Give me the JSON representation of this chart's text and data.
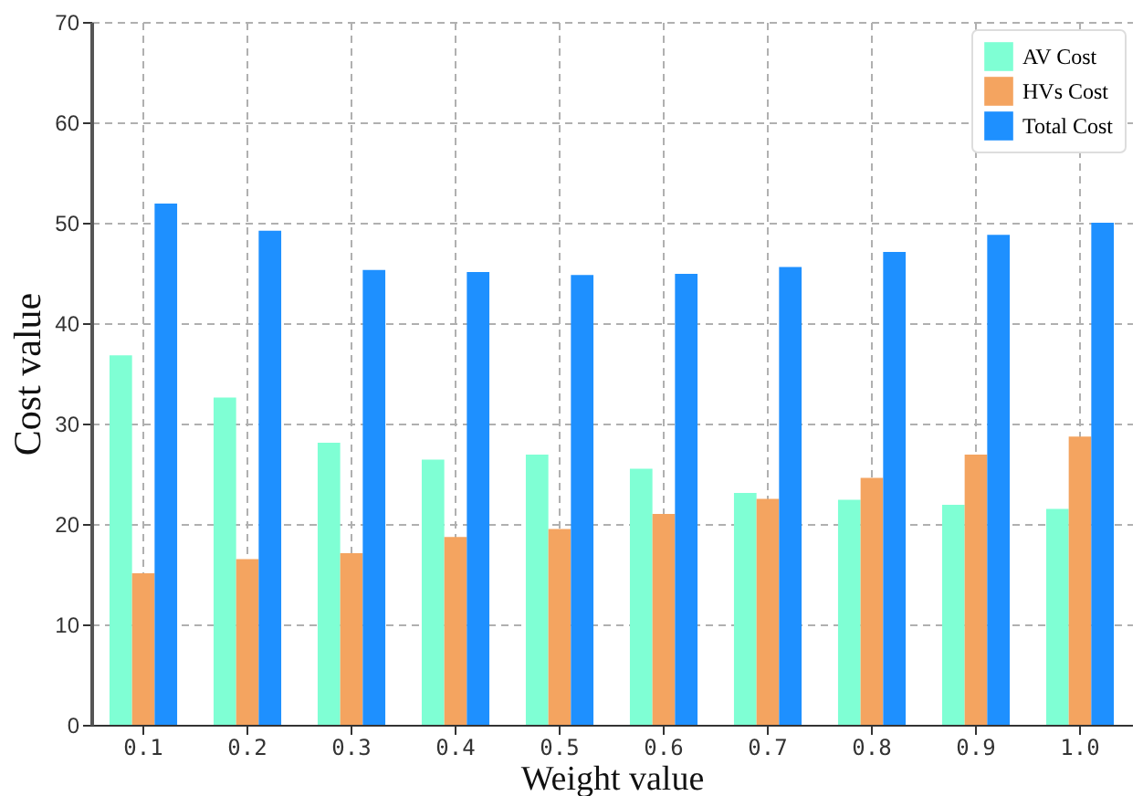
{
  "chart_data": {
    "type": "bar",
    "xlabel": "Weight value",
    "ylabel": "Cost value",
    "categories": [
      "0.1",
      "0.2",
      "0.3",
      "0.4",
      "0.5",
      "0.6",
      "0.7",
      "0.8",
      "0.9",
      "1.0"
    ],
    "series": [
      {
        "name": "AV Cost",
        "color": "#7fffd4",
        "values": [
          36.8,
          32.6,
          28.1,
          26.4,
          26.9,
          25.5,
          23.1,
          22.4,
          21.9,
          21.5
        ]
      },
      {
        "name": "HVs Cost",
        "color": "#f4a460",
        "values": [
          15.1,
          16.5,
          17.1,
          18.7,
          19.5,
          21.0,
          22.5,
          24.6,
          26.9,
          28.7
        ]
      },
      {
        "name": "Total Cost",
        "color": "#1e90ff",
        "values": [
          51.9,
          49.2,
          45.3,
          45.1,
          44.8,
          44.9,
          45.6,
          47.1,
          48.8,
          50.0
        ]
      }
    ],
    "ylim": [
      0,
      70
    ],
    "yticks": [
      0,
      10,
      20,
      30,
      40,
      50,
      60,
      70
    ],
    "grid": true,
    "legend": "top right"
  }
}
